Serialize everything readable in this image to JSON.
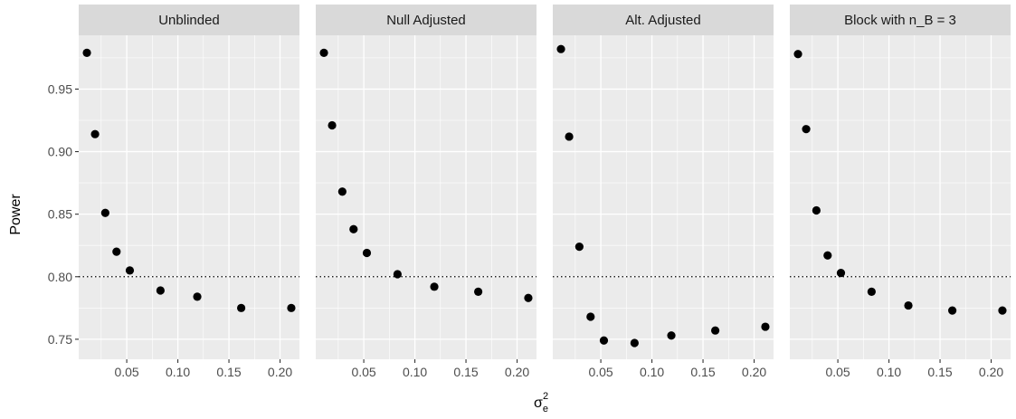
{
  "chart_data": {
    "type": "scatter",
    "facet_layout": "1 row x 4 columns",
    "xlabel": "σ",
    "xlabel_subscript": "e",
    "xlabel_superscript": "2",
    "ylabel": "Power",
    "xlim": [
      0.003,
      0.219
    ],
    "ylim": [
      0.734,
      0.993
    ],
    "x_ticks": [
      0.05,
      0.1,
      0.15,
      0.2
    ],
    "x_tick_labels": [
      "0.05",
      "0.10",
      "0.15",
      "0.20"
    ],
    "y_ticks": [
      0.75,
      0.8,
      0.85,
      0.9,
      0.95
    ],
    "y_tick_labels": [
      "0.75",
      "0.80",
      "0.85",
      "0.90",
      "0.95"
    ],
    "reference_line": {
      "y": 0.8,
      "style": "dotted"
    },
    "grid": true,
    "colors": {
      "panel_bg": "#ebebeb",
      "strip_bg": "#d9d9d9",
      "grid": "#ffffff",
      "point": "#000000"
    },
    "panels": [
      {
        "title": "Unblinded",
        "x": [
          0.011,
          0.019,
          0.029,
          0.04,
          0.053,
          0.083,
          0.119,
          0.162,
          0.211
        ],
        "y": [
          0.979,
          0.914,
          0.851,
          0.82,
          0.805,
          0.789,
          0.784,
          0.775,
          0.775
        ]
      },
      {
        "title": "Null Adjusted",
        "x": [
          0.011,
          0.019,
          0.029,
          0.04,
          0.053,
          0.083,
          0.119,
          0.162,
          0.211
        ],
        "y": [
          0.979,
          0.921,
          0.868,
          0.838,
          0.819,
          0.802,
          0.792,
          0.788,
          0.783
        ]
      },
      {
        "title": "Alt. Adjusted",
        "x": [
          0.011,
          0.019,
          0.029,
          0.04,
          0.053,
          0.083,
          0.119,
          0.162,
          0.211
        ],
        "y": [
          0.982,
          0.912,
          0.824,
          0.768,
          0.749,
          0.747,
          0.753,
          0.757,
          0.76
        ]
      },
      {
        "title": "Block with n_B = 3",
        "x": [
          0.011,
          0.019,
          0.029,
          0.04,
          0.053,
          0.083,
          0.119,
          0.162,
          0.211
        ],
        "y": [
          0.978,
          0.918,
          0.853,
          0.817,
          0.803,
          0.788,
          0.777,
          0.773,
          0.773
        ]
      }
    ]
  }
}
